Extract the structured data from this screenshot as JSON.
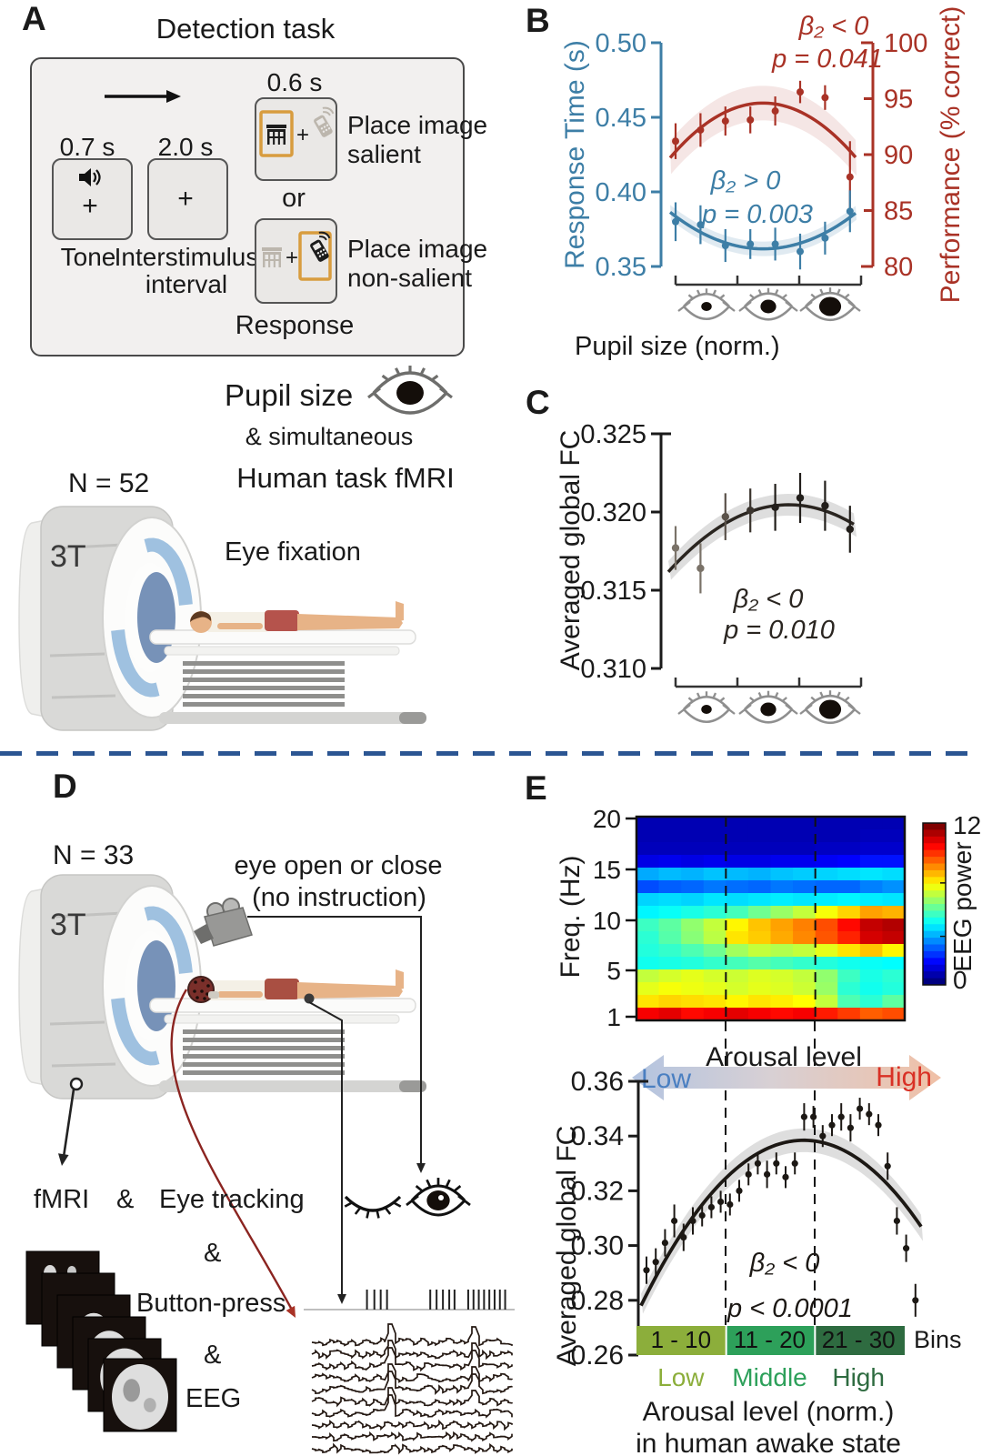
{
  "colors": {
    "accent_blue": "#3d7ea6",
    "accent_red": "#a93226",
    "divider": "#2b5592",
    "arrow_low": "#4a7fc1",
    "arrow_high": "#d93025",
    "orange_frame": "#d89c3e",
    "bin_colors": [
      "#8cae3b",
      "#2da05a",
      "#2e6b40"
    ]
  },
  "panel_a": {
    "label": "A",
    "title": "Detection task",
    "tone_duration": "0.7 s",
    "isi_duration": "2.0 s",
    "stim_duration": "0.6 s",
    "tone_label": "Tone",
    "isi_label_line1": "Interstimulus",
    "isi_label_line2": "interval",
    "plus": "+",
    "or_label": "or",
    "salient_line1": "Place image",
    "salient_line2": "salient",
    "nonsalient_line1": "Place image",
    "nonsalient_line2": "non-salient",
    "response_label": "Response"
  },
  "study1": {
    "pupil_size": "Pupil size",
    "simultaneous": "& simultaneous",
    "task": "Human task fMRI",
    "n": "N = 52",
    "tesla": "3T",
    "eye_fixation": "Eye fixation"
  },
  "panel_b": {
    "label": "B"
  },
  "panel_c": {
    "label": "C"
  },
  "panel_d": {
    "label": "D",
    "n": "N = 33",
    "tesla": "3T",
    "condition_line1": "eye open or close",
    "condition_line2": "(no instruction)",
    "fmri": "fMRI",
    "amp": "&",
    "eye_tracking": "Eye tracking",
    "button_press": "Button-press",
    "eeg": "EEG",
    "button_press_ticks": [
      0.3,
      0.335,
      0.365,
      0.395,
      0.6,
      0.63,
      0.66,
      0.69,
      0.715,
      0.78,
      0.805,
      0.83,
      0.855,
      0.88,
      0.905,
      0.93,
      0.955
    ]
  },
  "panel_e": {
    "label": "E"
  },
  "chart_data": [
    {
      "id": "panel_b",
      "type": "line",
      "xlabel": "Pupil size (norm.)",
      "x": [
        1,
        2,
        3,
        4,
        5,
        6,
        7,
        8
      ],
      "left_axis": {
        "label": "Response Time (s)",
        "ticks": [
          0.5,
          0.45,
          0.4,
          0.35
        ],
        "range": [
          0.35,
          0.5
        ],
        "color": "#3d7ea6"
      },
      "right_axis": {
        "label": "Performance (% correct)",
        "ticks": [
          100,
          95,
          90,
          85,
          80
        ],
        "range": [
          80,
          100
        ],
        "color": "#a93226"
      },
      "series": [
        {
          "name": "Response Time (s)",
          "axis": "left",
          "color": "#3d7ea6",
          "values": [
            0.38,
            0.378,
            0.364,
            0.365,
            0.365,
            0.36,
            0.369,
            0.387
          ],
          "errors": [
            0.013,
            0.013,
            0.011,
            0.01,
            0.011,
            0.012,
            0.011,
            0.014
          ],
          "annotation": "β₂ > 0",
          "p_label": "p = 0.003"
        },
        {
          "name": "Performance (% correct)",
          "axis": "right",
          "color": "#a93226",
          "values": [
            91.2,
            92.2,
            93.0,
            93.1,
            93.9,
            95.6,
            95.1,
            88.0
          ],
          "errors": [
            1.6,
            1.5,
            1.3,
            1.2,
            1.3,
            1.0,
            1.1,
            3.2
          ],
          "annotation": "β₂ < 0",
          "p_label": "p = 0.041"
        }
      ],
      "x_icons": "pupil-size-eyes"
    },
    {
      "id": "panel_c",
      "type": "line",
      "ylabel": "Averaged global FC",
      "x": [
        1,
        2,
        3,
        4,
        5,
        6,
        7,
        8
      ],
      "yticks": [
        0.325,
        0.32,
        0.315,
        0.31
      ],
      "range": [
        0.31,
        0.325
      ],
      "values": [
        0.3177,
        0.3164,
        0.3197,
        0.3201,
        0.3203,
        0.3209,
        0.3204,
        0.3189
      ],
      "errors": [
        0.0014,
        0.0016,
        0.0015,
        0.0014,
        0.0015,
        0.0016,
        0.0016,
        0.0015
      ],
      "annotation": "β₂ < 0",
      "p_label": "p = 0.010",
      "x_icons": "pupil-size-eyes"
    },
    {
      "id": "eeg_spectrogram",
      "type": "heatmap",
      "ylabel": "Freq. (Hz)",
      "yticks": [
        20,
        15,
        10,
        5,
        1
      ],
      "colorbar": {
        "label": "EEG power",
        "max": 12,
        "min": 0
      },
      "values": [
        [
          0.6,
          0.6,
          0.6,
          0.6,
          0.6,
          0.6,
          0.6,
          0.6,
          0.6,
          0.6,
          0.6,
          0.6
        ],
        [
          0.6,
          0.6,
          0.6,
          0.6,
          0.6,
          0.6,
          0.6,
          0.6,
          0.6,
          0.6,
          0.7,
          0.7
        ],
        [
          0.7,
          0.7,
          0.7,
          0.7,
          0.7,
          0.7,
          0.7,
          0.7,
          0.8,
          0.8,
          0.9,
          0.9
        ],
        [
          1.2,
          1.3,
          1.2,
          1.3,
          1.2,
          1.2,
          1.3,
          1.3,
          1.4,
          1.5,
          1.7,
          1.7
        ],
        [
          3.5,
          3.7,
          3.6,
          3.8,
          3.7,
          3.6,
          3.8,
          3.9,
          4.0,
          4.1,
          4.2,
          4.1
        ],
        [
          2.4,
          2.6,
          2.7,
          2.9,
          2.8,
          2.7,
          2.9,
          2.8,
          2.7,
          2.7,
          3.0,
          3.2
        ],
        [
          4.0,
          4.1,
          4.0,
          4.2,
          4.1,
          4.2,
          4.3,
          4.2,
          4.3,
          4.4,
          4.3,
          4.2
        ],
        [
          4.4,
          4.6,
          4.8,
          5.0,
          5.3,
          5.8,
          6.3,
          6.8,
          7.4,
          8.0,
          8.6,
          8.4
        ],
        [
          5.2,
          5.6,
          6.2,
          6.8,
          7.6,
          8.2,
          8.6,
          9.0,
          9.6,
          10.4,
          11.2,
          11.4
        ],
        [
          5.0,
          5.5,
          6.1,
          6.7,
          7.8,
          8.1,
          8.5,
          8.9,
          9.5,
          10.1,
          11.0,
          11.2
        ],
        [
          4.9,
          5.1,
          5.4,
          5.8,
          6.4,
          6.8,
          6.6,
          6.8,
          7.2,
          7.8,
          8.2,
          7.6
        ],
        [
          4.7,
          4.8,
          4.9,
          5.1,
          5.3,
          5.5,
          5.3,
          5.1,
          4.9,
          4.7,
          4.6,
          4.5
        ],
        [
          6.8,
          7.0,
          7.2,
          7.0,
          6.9,
          7.1,
          7.0,
          6.8,
          6.2,
          5.2,
          4.8,
          5.0
        ],
        [
          7.2,
          7.4,
          7.3,
          7.2,
          7.0,
          7.2,
          7.1,
          6.9,
          6.3,
          5.0,
          4.7,
          4.9
        ],
        [
          7.8,
          8.0,
          7.9,
          7.8,
          7.6,
          7.8,
          7.7,
          7.5,
          6.8,
          5.4,
          5.0,
          5.6
        ],
        [
          10.6,
          10.8,
          10.4,
          10.6,
          10.8,
          10.6,
          10.4,
          10.6,
          10.2,
          9.8,
          9.4,
          9.6
        ]
      ]
    },
    {
      "id": "arousal_fc",
      "type": "scatter",
      "ylabel": "Averaged global FC",
      "xlabel_line1": "Arousal level (norm.)",
      "xlabel_line2": "in human awake state",
      "yticks": [
        0.36,
        0.34,
        0.32,
        0.3,
        0.28,
        0.26
      ],
      "range": [
        0.26,
        0.36
      ],
      "values": [
        0.291,
        0.294,
        0.301,
        0.309,
        0.303,
        0.309,
        0.311,
        0.314,
        0.316,
        0.315,
        0.32,
        0.326,
        0.33,
        0.326,
        0.33,
        0.325,
        0.33,
        0.347,
        0.347,
        0.34,
        0.344,
        0.347,
        0.343,
        0.35,
        0.348,
        0.344,
        0.329,
        0.309,
        0.299,
        0.28
      ],
      "errors": [
        0.005,
        0.005,
        0.005,
        0.006,
        0.005,
        0.005,
        0.004,
        0.004,
        0.004,
        0.004,
        0.004,
        0.004,
        0.004,
        0.005,
        0.004,
        0.004,
        0.004,
        0.005,
        0.004,
        0.004,
        0.004,
        0.005,
        0.005,
        0.004,
        0.004,
        0.004,
        0.005,
        0.005,
        0.005,
        0.006
      ],
      "annotation": "β₂ < 0",
      "p_label": "p < 0.0001",
      "arrow": {
        "title": "Arousal level",
        "low": "Low",
        "high": "High"
      },
      "bins": {
        "segments": [
          {
            "label": "1 - 10",
            "name": "Low"
          },
          {
            "label": "11 - 20",
            "name": "Middle"
          },
          {
            "label": "21 - 30",
            "name": "High"
          }
        ],
        "caption": "Bins"
      }
    }
  ]
}
